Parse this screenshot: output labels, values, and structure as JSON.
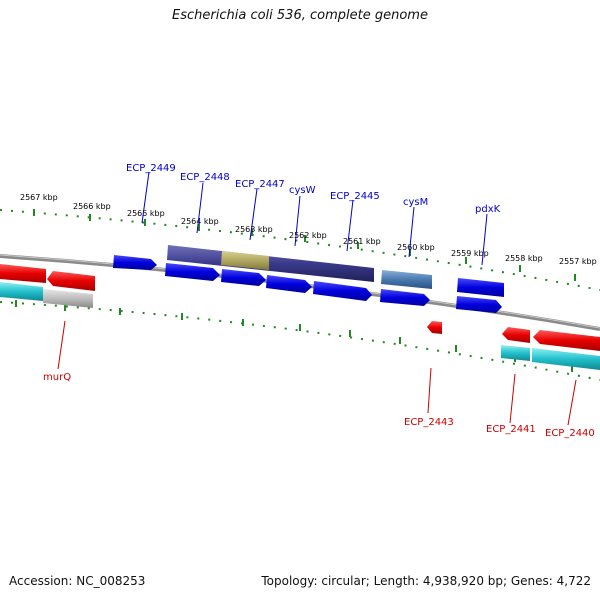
{
  "title": "Escherichia coli 536, complete genome",
  "footer": {
    "accession": "Accession: NC_008253",
    "summary": "Topology: circular; Length: 4,938,920 bp; Genes: 4,722"
  },
  "colors": {
    "forward": "#0000e0",
    "reverse": "#ee0000",
    "rna": "#20b8c8",
    "pseudo": "#c0c0c0",
    "operon": "#3a3a8c",
    "highlight": "#b0a860",
    "steel": "#4a7ab0",
    "ticks": "#228822",
    "forward_label": "#0000cc",
    "reverse_label": "#cc0000"
  },
  "kbp_ticks": [
    "2567 kbp",
    "2566 kbp",
    "2565 kbp",
    "2564 kbp",
    "2563 kbp",
    "2562 kbp",
    "2561 kbp",
    "2560 kbp",
    "2559 kbp",
    "2558 kbp",
    "2557 kbp"
  ],
  "forward_labels": [
    "ECP_2449",
    "ECP_2448",
    "ECP_2447",
    "cysW",
    "ECP_2445",
    "cysM",
    "pdxK"
  ],
  "reverse_labels": [
    "murQ",
    "ECP_2443",
    "ECP_2441",
    "ECP_2440"
  ]
}
